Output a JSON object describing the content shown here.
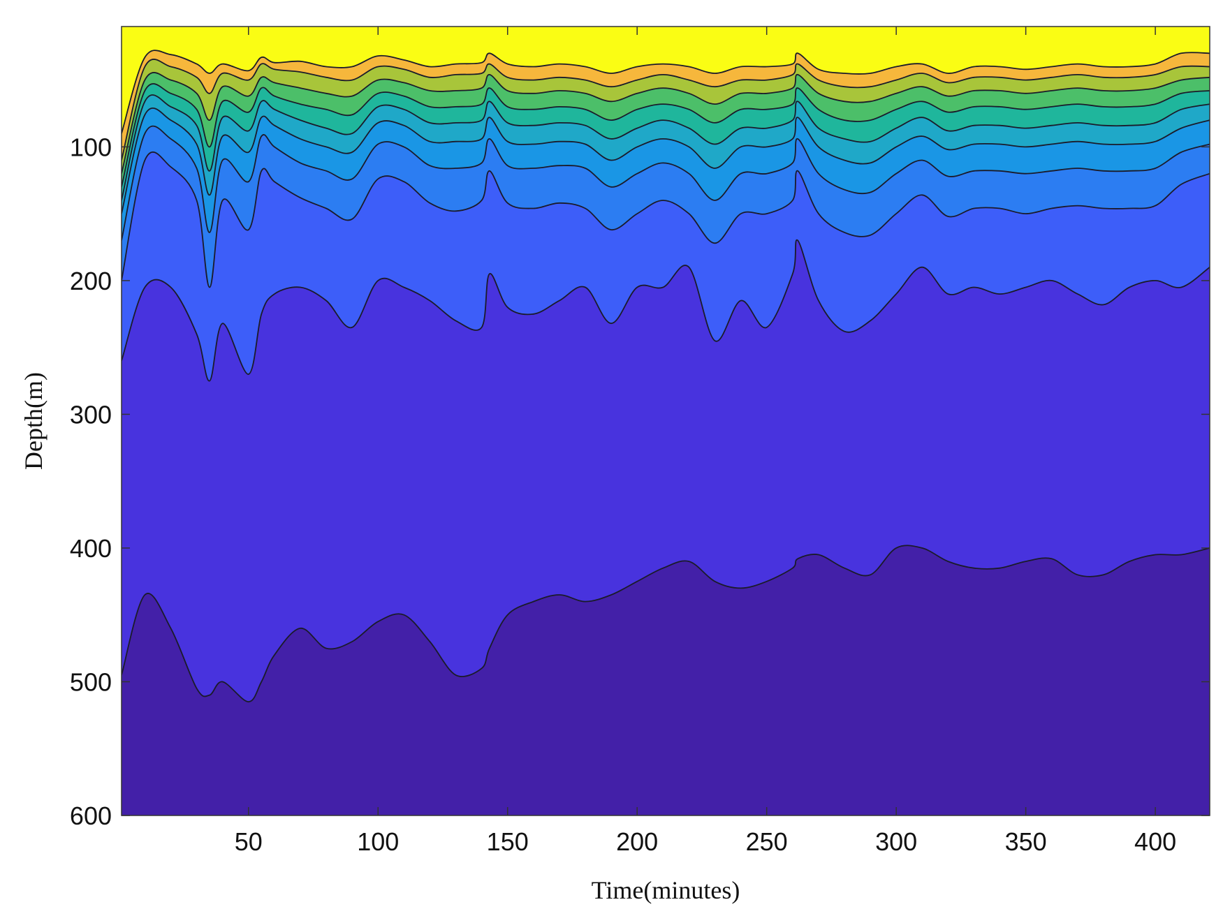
{
  "chart_data": {
    "type": "area",
    "title": "",
    "xlabel": "Time(minutes)",
    "ylabel": "Depth(m)",
    "xlim": [
      1,
      421
    ],
    "ylim": [
      10,
      600
    ],
    "y_reversed": true,
    "grid": false,
    "x_ticks": [
      50,
      100,
      150,
      200,
      250,
      300,
      350,
      400
    ],
    "y_ticks": [
      100,
      200,
      300,
      400,
      500,
      600
    ],
    "x_tick_labels": [
      "50",
      "100",
      "150",
      "200",
      "250",
      "300",
      "350",
      "400"
    ],
    "y_tick_labels": [
      "100",
      "200",
      "300",
      "400",
      "500",
      "600"
    ],
    "band_colors": [
      "#fafd14",
      "#fcca32",
      "#f6b73c",
      "#a8c53a",
      "#4cbf69",
      "#1fb69c",
      "#1fa8c8",
      "#1a96e5",
      "#2c7df2",
      "#3d5ef9",
      "#4833de",
      "#4320a8"
    ],
    "contours": [
      {
        "x": [
          1,
          10,
          20,
          30,
          35,
          40,
          50,
          55,
          60,
          70,
          80,
          90,
          100,
          110,
          120,
          130,
          140,
          143,
          150,
          160,
          170,
          180,
          190,
          200,
          210,
          220,
          230,
          240,
          250,
          260,
          262,
          270,
          280,
          290,
          300,
          310,
          320,
          330,
          340,
          350,
          360,
          370,
          380,
          390,
          400,
          410,
          421
        ],
        "y": [
          90,
          33,
          31,
          38,
          45,
          38,
          43,
          33,
          37,
          36,
          40,
          40,
          32,
          35,
          40,
          38,
          37,
          30,
          38,
          40,
          38,
          40,
          45,
          40,
          38,
          40,
          45,
          40,
          40,
          38,
          30,
          42,
          45,
          45,
          40,
          38,
          45,
          40,
          40,
          42,
          40,
          38,
          40,
          40,
          38,
          30,
          30
        ]
      },
      {
        "x": [
          1,
          10,
          20,
          30,
          35,
          40,
          50,
          55,
          60,
          70,
          80,
          90,
          100,
          110,
          120,
          130,
          140,
          143,
          150,
          160,
          170,
          180,
          190,
          200,
          210,
          220,
          230,
          240,
          250,
          260,
          262,
          270,
          280,
          290,
          300,
          310,
          320,
          330,
          340,
          350,
          360,
          370,
          380,
          390,
          400,
          410,
          421
        ],
        "y": [
          110,
          40,
          40,
          48,
          60,
          45,
          50,
          38,
          42,
          44,
          48,
          50,
          40,
          42,
          48,
          46,
          45,
          38,
          48,
          50,
          48,
          50,
          55,
          50,
          46,
          50,
          55,
          50,
          50,
          46,
          38,
          50,
          55,
          55,
          50,
          45,
          52,
          48,
          48,
          50,
          48,
          46,
          48,
          48,
          46,
          40,
          40
        ]
      },
      {
        "x": [
          1,
          10,
          20,
          30,
          35,
          40,
          50,
          55,
          60,
          70,
          80,
          90,
          100,
          110,
          120,
          130,
          140,
          143,
          150,
          160,
          170,
          180,
          190,
          200,
          210,
          220,
          230,
          240,
          250,
          260,
          262,
          270,
          280,
          290,
          300,
          310,
          320,
          330,
          340,
          350,
          360,
          370,
          380,
          390,
          400,
          410,
          421
        ],
        "y": [
          120,
          50,
          50,
          60,
          80,
          55,
          62,
          48,
          52,
          56,
          60,
          62,
          50,
          52,
          58,
          58,
          56,
          46,
          58,
          60,
          58,
          60,
          66,
          60,
          56,
          60,
          68,
          60,
          60,
          56,
          46,
          60,
          66,
          66,
          60,
          55,
          62,
          58,
          58,
          60,
          58,
          56,
          58,
          58,
          56,
          50,
          48
        ]
      },
      {
        "x": [
          1,
          10,
          20,
          30,
          35,
          40,
          50,
          55,
          60,
          70,
          80,
          90,
          100,
          110,
          120,
          130,
          140,
          143,
          150,
          160,
          170,
          180,
          190,
          200,
          210,
          220,
          230,
          240,
          250,
          260,
          262,
          270,
          280,
          290,
          300,
          310,
          320,
          330,
          340,
          350,
          360,
          370,
          380,
          390,
          400,
          410,
          421
        ],
        "y": [
          130,
          58,
          60,
          72,
          100,
          66,
          74,
          56,
          62,
          68,
          72,
          76,
          60,
          62,
          70,
          70,
          68,
          56,
          70,
          72,
          70,
          72,
          80,
          72,
          68,
          72,
          82,
          72,
          72,
          68,
          56,
          72,
          80,
          80,
          72,
          66,
          74,
          70,
          70,
          72,
          70,
          68,
          70,
          70,
          68,
          60,
          58
        ]
      },
      {
        "x": [
          1,
          10,
          20,
          30,
          35,
          40,
          50,
          55,
          60,
          70,
          80,
          90,
          100,
          110,
          120,
          130,
          140,
          143,
          150,
          160,
          170,
          180,
          190,
          200,
          210,
          220,
          230,
          240,
          250,
          260,
          262,
          270,
          280,
          290,
          300,
          310,
          320,
          330,
          340,
          350,
          360,
          370,
          380,
          390,
          400,
          410,
          421
        ],
        "y": [
          140,
          66,
          70,
          84,
          118,
          78,
          88,
          66,
          72,
          80,
          86,
          90,
          70,
          72,
          82,
          82,
          80,
          66,
          82,
          84,
          82,
          84,
          94,
          86,
          80,
          86,
          98,
          86,
          86,
          80,
          66,
          86,
          94,
          96,
          86,
          78,
          88,
          84,
          84,
          86,
          84,
          82,
          84,
          84,
          82,
          72,
          68
        ]
      },
      {
        "x": [
          1,
          10,
          20,
          30,
          35,
          40,
          50,
          55,
          60,
          70,
          80,
          90,
          100,
          110,
          120,
          130,
          140,
          143,
          150,
          160,
          170,
          180,
          190,
          200,
          210,
          220,
          230,
          240,
          250,
          260,
          262,
          270,
          280,
          290,
          300,
          310,
          320,
          330,
          340,
          350,
          360,
          370,
          380,
          390,
          400,
          410,
          421
        ],
        "y": [
          150,
          76,
          80,
          98,
          136,
          92,
          104,
          78,
          84,
          94,
          100,
          104,
          82,
          84,
          96,
          96,
          94,
          78,
          96,
          98,
          96,
          98,
          110,
          100,
          94,
          100,
          116,
          100,
          100,
          94,
          78,
          100,
          110,
          112,
          100,
          92,
          102,
          98,
          98,
          100,
          98,
          96,
          98,
          98,
          96,
          86,
          80
        ]
      },
      {
        "x": [
          1,
          10,
          20,
          30,
          35,
          40,
          50,
          55,
          60,
          70,
          80,
          90,
          100,
          110,
          120,
          130,
          140,
          143,
          150,
          160,
          170,
          180,
          190,
          200,
          210,
          220,
          230,
          240,
          250,
          260,
          262,
          270,
          280,
          290,
          300,
          310,
          320,
          330,
          340,
          350,
          360,
          370,
          380,
          390,
          400,
          410,
          421
        ],
        "y": [
          170,
          90,
          94,
          116,
          164,
          110,
          126,
          92,
          100,
          112,
          118,
          124,
          98,
          100,
          114,
          116,
          112,
          94,
          114,
          116,
          114,
          116,
          130,
          120,
          112,
          120,
          140,
          120,
          120,
          112,
          94,
          120,
          132,
          134,
          120,
          110,
          122,
          118,
          118,
          120,
          118,
          116,
          118,
          118,
          116,
          104,
          98
        ]
      },
      {
        "x": [
          1,
          10,
          20,
          30,
          35,
          40,
          50,
          55,
          60,
          70,
          80,
          90,
          100,
          110,
          120,
          130,
          140,
          143,
          150,
          160,
          170,
          180,
          190,
          200,
          210,
          220,
          230,
          240,
          250,
          260,
          262,
          270,
          280,
          290,
          300,
          310,
          320,
          330,
          340,
          350,
          360,
          370,
          380,
          390,
          400,
          410,
          421
        ],
        "y": [
          200,
          110,
          115,
          140,
          205,
          140,
          162,
          118,
          126,
          138,
          146,
          154,
          124,
          126,
          142,
          148,
          140,
          118,
          142,
          146,
          142,
          146,
          162,
          150,
          140,
          150,
          172,
          150,
          150,
          140,
          118,
          150,
          164,
          166,
          150,
          136,
          152,
          146,
          146,
          150,
          146,
          144,
          146,
          146,
          144,
          128,
          120
        ]
      },
      {
        "x": [
          1,
          10,
          20,
          30,
          35,
          40,
          50,
          55,
          60,
          70,
          80,
          90,
          100,
          110,
          120,
          130,
          140,
          143,
          150,
          160,
          170,
          180,
          190,
          200,
          210,
          220,
          230,
          240,
          250,
          260,
          262,
          270,
          280,
          290,
          300,
          310,
          320,
          330,
          340,
          350,
          360,
          370,
          380,
          390,
          400,
          410,
          421
        ],
        "y": [
          260,
          205,
          205,
          240,
          275,
          232,
          270,
          225,
          210,
          205,
          215,
          235,
          200,
          205,
          215,
          230,
          235,
          195,
          220,
          225,
          215,
          205,
          232,
          205,
          205,
          190,
          245,
          215,
          235,
          195,
          170,
          215,
          238,
          230,
          210,
          190,
          210,
          205,
          210,
          205,
          200,
          210,
          218,
          205,
          200,
          205,
          190
        ]
      },
      {
        "x": [
          1,
          10,
          20,
          30,
          35,
          40,
          50,
          55,
          60,
          70,
          80,
          90,
          100,
          110,
          120,
          130,
          140,
          143,
          150,
          160,
          170,
          180,
          190,
          200,
          210,
          220,
          230,
          240,
          250,
          260,
          262,
          270,
          280,
          290,
          300,
          310,
          320,
          330,
          340,
          350,
          360,
          370,
          380,
          390,
          400,
          410,
          421
        ],
        "y": [
          495,
          435,
          460,
          505,
          510,
          500,
          515,
          500,
          480,
          460,
          475,
          470,
          455,
          450,
          470,
          495,
          490,
          475,
          450,
          440,
          435,
          440,
          435,
          425,
          415,
          410,
          425,
          430,
          425,
          415,
          408,
          405,
          415,
          420,
          400,
          400,
          410,
          415,
          415,
          410,
          408,
          420,
          420,
          410,
          405,
          405,
          400
        ]
      }
    ]
  }
}
